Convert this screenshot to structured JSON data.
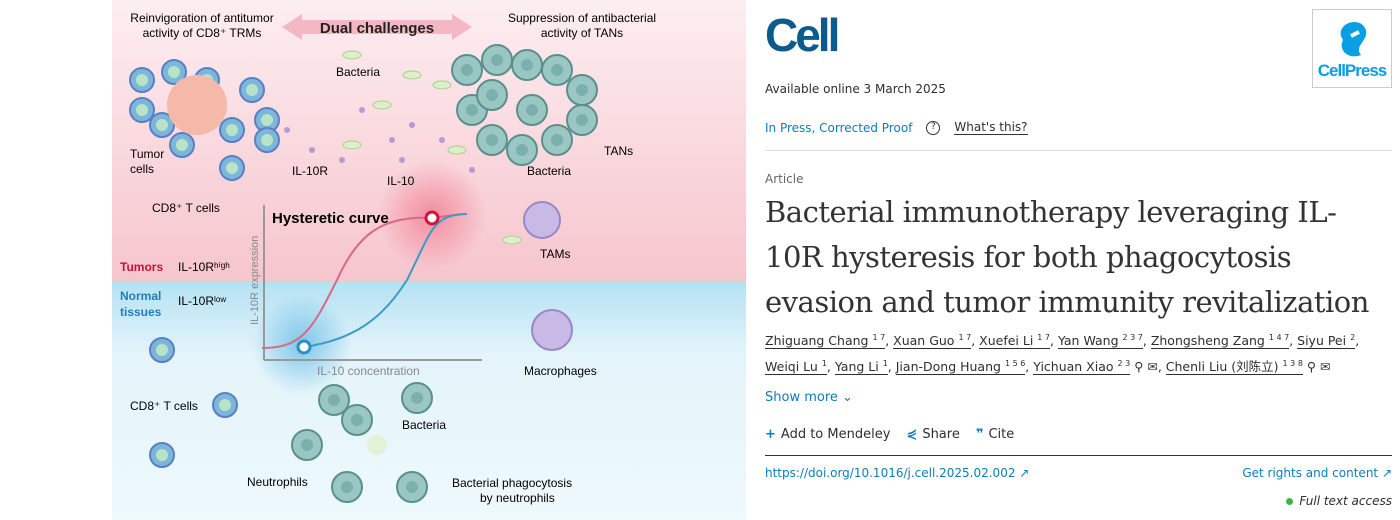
{
  "abstract": {
    "dual": "Dual challenges",
    "left_head": [
      "Reinvigoration of antitumor",
      "activity of CD8⁺ TRMs"
    ],
    "right_head": [
      "Suppression of antibacterial",
      "activity of TANs"
    ],
    "labels": {
      "bacteria": "Bacteria",
      "tumor_cells": [
        "Tumor",
        "cells"
      ],
      "cd8_top": "CD8⁺ T cells",
      "il10r": "IL-10R",
      "il10": "IL-10",
      "bacteria2": "Bacteria",
      "tans": "TANs",
      "tams": "TAMs",
      "curve": "Hysteretic curve",
      "tumors": "Tumors",
      "il10r_high": "IL-10Rʰⁱᵍʰ",
      "normal": [
        "Normal",
        "tissues"
      ],
      "il10r_low": "IL-10Rˡᵒʷ",
      "yaxis": "IL-10R expression",
      "xaxis": "IL-10 concentration",
      "macrophages": "Macrophages",
      "cd8_bottom": "CD8⁺ T cells",
      "bacteria3": "Bacteria",
      "neutrophils": "Neutrophils",
      "phago": [
        "Bacterial phagocytosis",
        "by neutrophils"
      ]
    },
    "colors": {
      "pink": "#fbe3e7",
      "blue": "#dff3f9",
      "red": "#d2143c",
      "teal": "#2f8fc4"
    }
  },
  "journal": {
    "logo": "Cell",
    "publisher": "CellPress"
  },
  "available": "Available online 3 March 2025",
  "status": {
    "label": "In Press, Corrected Proof",
    "help": "What's this?"
  },
  "article_type": "Article",
  "title": "Bacterial immunotherapy leveraging IL-10R hysteresis for both phagocytosis evasion and tumor immunity revitalization",
  "authors": [
    {
      "name": "Zhiguang Chang",
      "sup": "1 7"
    },
    {
      "name": "Xuan Guo",
      "sup": "1 7"
    },
    {
      "name": "Xuefei Li",
      "sup": "1 7"
    },
    {
      "name": "Yan Wang",
      "sup": "2 3 7"
    },
    {
      "name": "Zhongsheng Zang",
      "sup": "1 4 7"
    },
    {
      "name": "Siyu Pei",
      "sup": "2"
    },
    {
      "name": "Weiqi Lu",
      "sup": "1"
    },
    {
      "name": "Yang Li",
      "sup": "1"
    },
    {
      "name": "Jian-Dong Huang",
      "sup": "1 5 6"
    },
    {
      "name": "Yichuan Xiao",
      "sup": "2 3"
    },
    {
      "name": "Chenli Liu (刘陈立)",
      "sup": "1 3 8"
    }
  ],
  "show_more": "Show more",
  "actions": {
    "mendeley": "Add to Mendeley",
    "share": "Share",
    "cite": "Cite"
  },
  "doi": "https://doi.org/10.1016/j.cell.2025.02.002",
  "rights": "Get rights and content",
  "access": "Full text access"
}
